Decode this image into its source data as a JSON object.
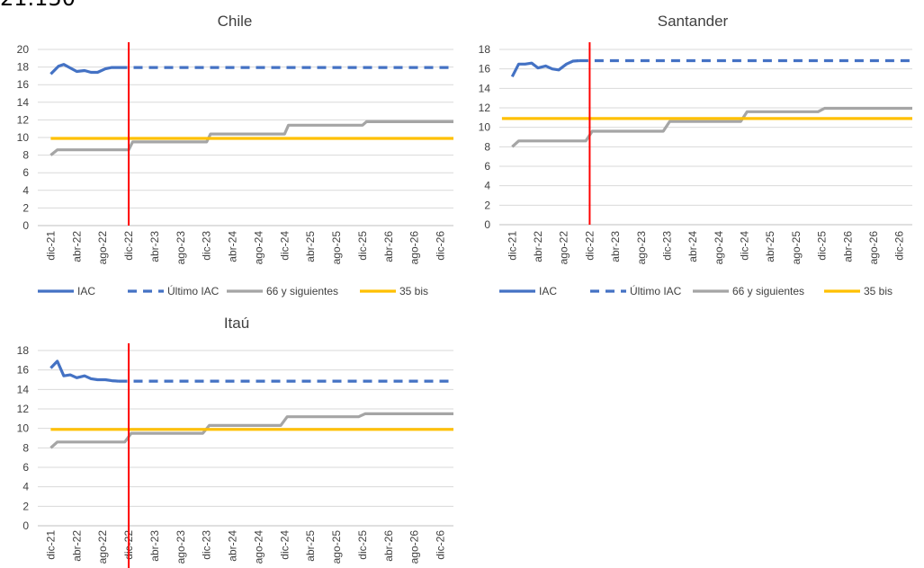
{
  "header_fragment": "21.150",
  "chart_data": [
    {
      "type": "line",
      "title": "Chile",
      "ylim": [
        0,
        20
      ],
      "yticks": [
        0,
        2,
        4,
        6,
        8,
        10,
        12,
        14,
        16,
        18,
        20
      ],
      "x_labels": [
        "dic-21",
        "abr-22",
        "ago-22",
        "dic-22",
        "abr-23",
        "ago-23",
        "dic-23",
        "abr-24",
        "ago-24",
        "dic-24",
        "abr-25",
        "ago-25",
        "dic-25",
        "abr-26",
        "ago-26",
        "dic-26"
      ],
      "vertical_marker": "dic-22",
      "grid": "horizontal",
      "legend": "bottom",
      "colors": {
        "iac": "#4472C4",
        "ultimo": "#4472C4",
        "s66": "#A5A5A5",
        "bis35": "#FFC000",
        "marker": "#FF0000"
      },
      "series": [
        {
          "name": "IAC",
          "style": "solid",
          "points": [
            [
              0,
              17.2
            ],
            [
              0.3,
              18.1
            ],
            [
              0.5,
              18.3
            ],
            [
              0.75,
              17.9
            ],
            [
              1,
              17.5
            ],
            [
              1.3,
              17.6
            ],
            [
              1.55,
              17.4
            ],
            [
              1.8,
              17.4
            ],
            [
              2.1,
              17.8
            ],
            [
              2.35,
              17.95
            ],
            [
              2.6,
              17.95
            ]
          ]
        },
        {
          "name": "Último IAC",
          "style": "dashed",
          "points": [
            [
              2.6,
              17.95
            ],
            [
              15.5,
              17.95
            ]
          ]
        },
        {
          "name": "66 y siguientes",
          "style": "solid",
          "points": [
            [
              0,
              8
            ],
            [
              0.25,
              8.6
            ],
            [
              3,
              8.6
            ],
            [
              3.15,
              9.5
            ],
            [
              6,
              9.5
            ],
            [
              6.15,
              10.4
            ],
            [
              9,
              10.4
            ],
            [
              9.15,
              11.4
            ],
            [
              12,
              11.4
            ],
            [
              12.15,
              11.8
            ],
            [
              15.5,
              11.8
            ]
          ]
        },
        {
          "name": "35 bis",
          "style": "solid",
          "points": [
            [
              0,
              9.9
            ],
            [
              15.5,
              9.9
            ]
          ]
        }
      ]
    },
    {
      "type": "line",
      "title": "Santander",
      "ylim": [
        0,
        18
      ],
      "yticks": [
        0,
        2,
        4,
        6,
        8,
        10,
        12,
        14,
        16,
        18
      ],
      "x_labels": [
        "dic-21",
        "abr-22",
        "ago-22",
        "dic-22",
        "abr-23",
        "ago-23",
        "dic-23",
        "abr-24",
        "ago-24",
        "dic-24",
        "abr-25",
        "ago-25",
        "dic-25",
        "abr-26",
        "ago-26",
        "dic-26"
      ],
      "vertical_marker": "dic-22",
      "grid": "horizontal",
      "legend": "bottom",
      "colors": {
        "iac": "#4472C4",
        "ultimo": "#4472C4",
        "s66": "#A5A5A5",
        "bis35": "#FFC000",
        "marker": "#FF0000"
      },
      "series": [
        {
          "name": "IAC",
          "style": "solid",
          "points": [
            [
              0,
              15.2
            ],
            [
              0.25,
              16.5
            ],
            [
              0.5,
              16.5
            ],
            [
              0.75,
              16.6
            ],
            [
              1,
              16.1
            ],
            [
              1.3,
              16.3
            ],
            [
              1.55,
              16.0
            ],
            [
              1.8,
              15.9
            ],
            [
              2.1,
              16.5
            ],
            [
              2.35,
              16.8
            ],
            [
              2.6,
              16.85
            ]
          ]
        },
        {
          "name": "Último IAC",
          "style": "dashed",
          "points": [
            [
              2.6,
              16.85
            ],
            [
              15.5,
              16.85
            ]
          ]
        },
        {
          "name": "66 y siguientes",
          "style": "solid",
          "points": [
            [
              0,
              8
            ],
            [
              0.25,
              8.6
            ],
            [
              2.85,
              8.6
            ],
            [
              3.1,
              9.6
            ],
            [
              5.85,
              9.6
            ],
            [
              6.1,
              10.6
            ],
            [
              8.85,
              10.6
            ],
            [
              9.1,
              11.6
            ],
            [
              11.85,
              11.6
            ],
            [
              12.1,
              11.95
            ],
            [
              15.5,
              11.95
            ]
          ]
        },
        {
          "name": "35 bis",
          "style": "solid",
          "points": [
            [
              -0.4,
              10.9
            ],
            [
              15.5,
              10.9
            ]
          ]
        }
      ]
    },
    {
      "type": "line",
      "title": "Itaú",
      "ylim": [
        0,
        18
      ],
      "yticks": [
        0,
        2,
        4,
        6,
        8,
        10,
        12,
        14,
        16,
        18
      ],
      "x_labels": [
        "dic-21",
        "abr-22",
        "ago-22",
        "dic-22",
        "abr-23",
        "ago-23",
        "dic-23",
        "abr-24",
        "ago-24",
        "dic-24",
        "abr-25",
        "ago-25",
        "dic-25",
        "abr-26",
        "ago-26",
        "dic-26"
      ],
      "vertical_marker": "dic-22",
      "grid": "horizontal",
      "legend": "none",
      "colors": {
        "iac": "#4472C4",
        "ultimo": "#4472C4",
        "s66": "#A5A5A5",
        "bis35": "#FFC000",
        "marker": "#FF0000"
      },
      "series": [
        {
          "name": "IAC",
          "style": "solid",
          "points": [
            [
              0,
              16.2
            ],
            [
              0.25,
              16.9
            ],
            [
              0.5,
              15.4
            ],
            [
              0.75,
              15.5
            ],
            [
              1,
              15.2
            ],
            [
              1.3,
              15.4
            ],
            [
              1.55,
              15.1
            ],
            [
              1.8,
              15.0
            ],
            [
              2.1,
              15.0
            ],
            [
              2.35,
              14.9
            ],
            [
              2.6,
              14.85
            ]
          ]
        },
        {
          "name": "Último IAC",
          "style": "dashed",
          "points": [
            [
              2.6,
              14.85
            ],
            [
              15.5,
              14.85
            ]
          ]
        },
        {
          "name": "66 y siguientes",
          "style": "solid",
          "points": [
            [
              0,
              8
            ],
            [
              0.25,
              8.6
            ],
            [
              2.85,
              8.6
            ],
            [
              3.1,
              9.5
            ],
            [
              5.85,
              9.5
            ],
            [
              6.1,
              10.3
            ],
            [
              8.85,
              10.3
            ],
            [
              9.1,
              11.2
            ],
            [
              11.85,
              11.2
            ],
            [
              12.1,
              11.5
            ],
            [
              15.5,
              11.5
            ]
          ]
        },
        {
          "name": "35 bis",
          "style": "solid",
          "points": [
            [
              0,
              9.9
            ],
            [
              15.5,
              9.9
            ]
          ]
        }
      ]
    }
  ]
}
